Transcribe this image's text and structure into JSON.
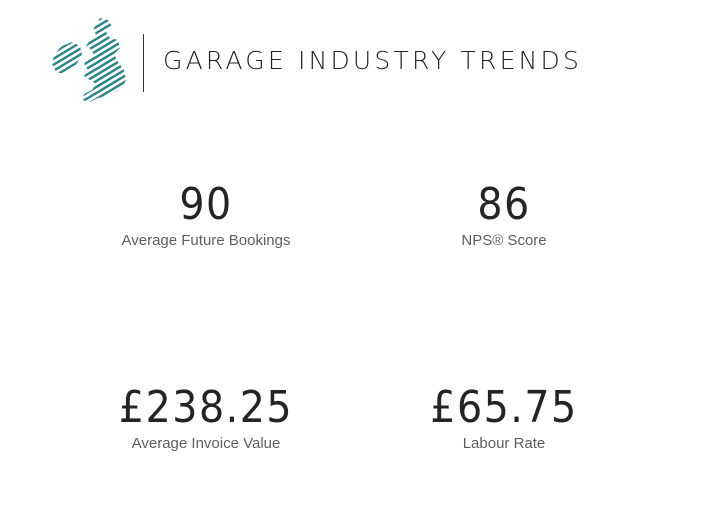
{
  "header": {
    "title": "GARAGE INDUSTRY TRENDS",
    "logo_icon": "uk-map-striped-icon",
    "logo_colors": [
      "#1a5c7a",
      "#2a9d8f",
      "#57c4a8"
    ]
  },
  "kpis": [
    {
      "value": "90",
      "label": "Average Future Bookings"
    },
    {
      "value": "86",
      "label": "NPS® Score"
    },
    {
      "value": "£238.25",
      "label": "Average Invoice Value"
    },
    {
      "value": "£65.75",
      "label": "Labour Rate"
    }
  ]
}
